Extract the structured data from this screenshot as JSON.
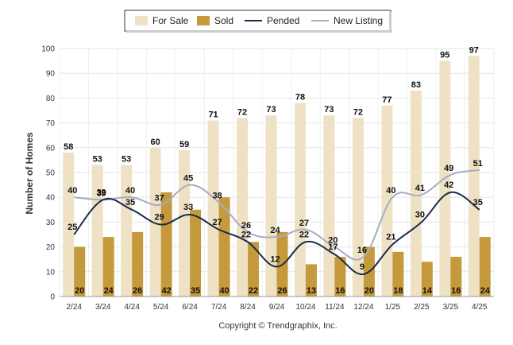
{
  "chart_data": {
    "type": "bar",
    "categories": [
      "2/24",
      "3/24",
      "4/24",
      "5/24",
      "6/24",
      "7/24",
      "8/24",
      "9/24",
      "10/24",
      "11/24",
      "12/24",
      "1/25",
      "2/25",
      "3/25",
      "4/25"
    ],
    "series": [
      {
        "name": "For Sale",
        "kind": "bar",
        "color": "#efe1c3",
        "values": [
          58,
          53,
          53,
          60,
          59,
          71,
          72,
          73,
          78,
          73,
          72,
          77,
          83,
          95,
          97
        ]
      },
      {
        "name": "Sold",
        "kind": "bar",
        "color": "#c49a3c",
        "values": [
          20,
          24,
          26,
          42,
          35,
          40,
          22,
          26,
          13,
          16,
          20,
          18,
          14,
          16,
          24
        ]
      },
      {
        "name": "Pended",
        "kind": "line",
        "color": "#1a2b4a",
        "values": [
          25,
          39,
          35,
          29,
          33,
          27,
          22,
          12,
          22,
          17,
          9,
          21,
          30,
          42,
          35
        ]
      },
      {
        "name": "New Listing",
        "kind": "line",
        "color": "#a5adc6",
        "values": [
          40,
          39,
          40,
          37,
          45,
          38,
          26,
          24,
          27,
          20,
          16,
          40,
          41,
          49,
          51
        ]
      }
    ],
    "ylabel": "Number of Homes",
    "xlabel": "",
    "ylim": [
      0,
      100
    ],
    "yticks": [
      0,
      10,
      20,
      30,
      40,
      50,
      60,
      70,
      80,
      90,
      100
    ],
    "grid": true,
    "legend_position": "top-center"
  },
  "footer": "Copyright © Trendgraphix, Inc."
}
